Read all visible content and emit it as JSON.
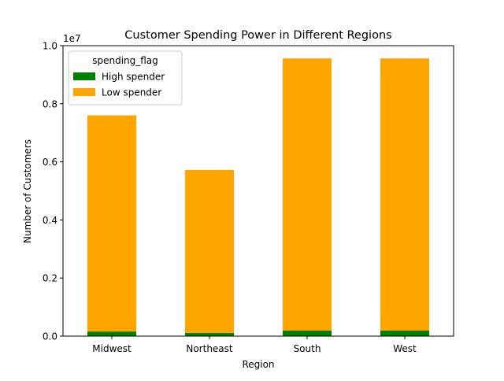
{
  "chart_data": {
    "type": "bar",
    "stacked": true,
    "title": "Customer Spending Power in Different Regions",
    "xlabel": "Region",
    "ylabel": "Number of Customers",
    "y_offset_label": "1e7",
    "y_scale": 10000000,
    "ylim": [
      0,
      10000000
    ],
    "y_ticks": [
      0,
      2000000,
      4000000,
      6000000,
      8000000,
      10000000
    ],
    "y_tick_labels": [
      "0.0",
      "0.2",
      "0.4",
      "0.6",
      "0.8",
      "1.0"
    ],
    "categories": [
      "Midwest",
      "Northeast",
      "South",
      "West"
    ],
    "series": [
      {
        "name": "High spender",
        "color": "#008000",
        "values": [
          160000,
          110000,
          190000,
          190000
        ]
      },
      {
        "name": "Low spender",
        "color": "#FFA500",
        "values": [
          7440000,
          5610000,
          9370000,
          9370000
        ]
      }
    ],
    "legend": {
      "title": "spending_flag",
      "placement": "top-left"
    },
    "grid": false
  }
}
